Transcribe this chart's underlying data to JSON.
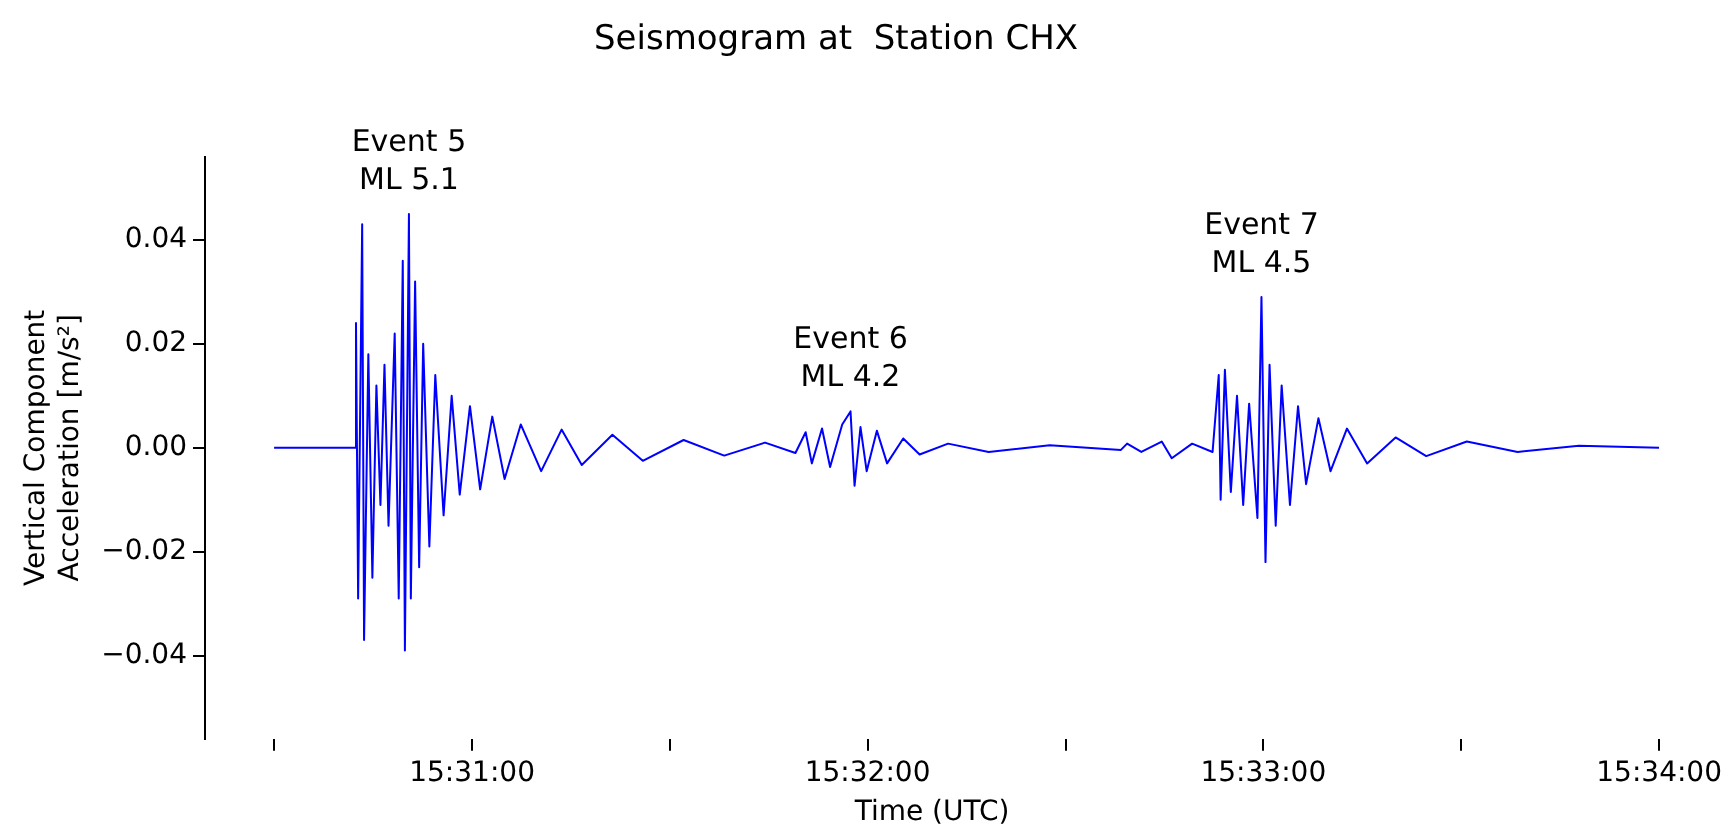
{
  "chart_data": {
    "type": "line",
    "title": "Seismogram at  Station CHX",
    "xlabel": "Time (UTC)",
    "ylabel": "Vertical Component\nAcceleration [m/s²]",
    "x": [
      15.50833,
      15.5117,
      15.51178,
      15.51187,
      15.51204,
      15.51212,
      15.5123,
      15.51247,
      15.51264,
      15.51281,
      15.51298,
      15.51315,
      15.51341,
      15.51358,
      15.51375,
      15.51384,
      15.51401,
      15.51409,
      15.51427,
      15.51444,
      15.51461,
      15.51487,
      15.51512,
      15.51547,
      15.51581,
      15.51615,
      15.51658,
      15.51701,
      15.51752,
      15.51804,
      15.51872,
      15.51958,
      15.52044,
      15.52129,
      15.52258,
      15.52386,
      15.52558,
      15.52729,
      15.52901,
      15.53029,
      15.53072,
      15.53098,
      15.53141,
      15.53175,
      15.53226,
      15.53261,
      15.53278,
      15.53303,
      15.53329,
      15.53372,
      15.53415,
      15.53483,
      15.53552,
      15.53672,
      15.53843,
      15.541,
      15.544,
      15.54426,
      15.54486,
      15.54572,
      15.54614,
      15.547,
      15.54786,
      15.54812,
      15.5482,
      15.54838,
      15.54863,
      15.54889,
      15.54915,
      15.5494,
      15.54975,
      15.54992,
      15.55009,
      15.55026,
      15.55052,
      15.55077,
      15.55112,
      15.55146,
      15.5518,
      15.55232,
      15.55283,
      15.55352,
      15.55437,
      15.55557,
      15.55686,
      15.55857,
      15.56071,
      15.56329,
      15.56667
    ],
    "series": [
      {
        "color": "#0000ff",
        "values": [
          0,
          0,
          0.024,
          -0.029,
          0.043,
          -0.037,
          0.018,
          -0.025,
          0.012,
          -0.011,
          0.016,
          -0.015,
          0.022,
          -0.029,
          0.036,
          -0.039,
          0.045,
          -0.029,
          0.032,
          -0.023,
          0.02,
          -0.019,
          0.014,
          -0.013,
          0.01,
          -0.009,
          0.008,
          -0.008,
          0.006,
          -0.006,
          0.0045,
          -0.0045,
          0.0035,
          -0.0033,
          0.0025,
          -0.0025,
          0.0015,
          -0.0015,
          0.001,
          -0.001,
          0.003,
          -0.003,
          0.0037,
          -0.0037,
          0.0045,
          0.007,
          -0.0073,
          0.004,
          -0.0045,
          0.0033,
          -0.003,
          0.0018,
          -0.0013,
          0.0008,
          -0.0008,
          0.0005,
          -0.0004,
          0.0008,
          -0.0008,
          0.0012,
          -0.002,
          0.0008,
          -0.0008,
          0.014,
          -0.01,
          0.015,
          -0.0085,
          0.01,
          -0.011,
          0.0085,
          -0.0135,
          0.029,
          -0.022,
          0.016,
          -0.015,
          0.012,
          -0.011,
          0.008,
          -0.007,
          0.0057,
          -0.0045,
          0.0037,
          -0.003,
          0.002,
          -0.0016,
          0.0012,
          -0.0008,
          0.0004,
          0
        ]
      }
    ],
    "xlim": [
      15.50542,
      15.56667
    ],
    "xticks": [
      {
        "value": 15.50833,
        "label": null
      },
      {
        "value": 15.51667,
        "label": "15:31:00"
      },
      {
        "value": 15.525,
        "label": null
      },
      {
        "value": 15.53333,
        "label": "15:32:00"
      },
      {
        "value": 15.54167,
        "label": null
      },
      {
        "value": 15.55,
        "label": "15:33:00"
      },
      {
        "value": 15.55833,
        "label": null
      },
      {
        "value": 15.56667,
        "label": "15:34:00"
      }
    ],
    "ylim": [
      -0.056,
      0.056
    ],
    "yticks": [
      {
        "value": -0.04,
        "label": "−0.04"
      },
      {
        "value": -0.02,
        "label": "−0.02"
      },
      {
        "value": 0,
        "label": "0.00"
      },
      {
        "value": 0.02,
        "label": "0.02"
      },
      {
        "value": 0.04,
        "label": "0.04"
      }
    ],
    "annotations": [
      {
        "text": "Event 5\nML 5.1",
        "x": 15.51401,
        "y": 0.045
      },
      {
        "text": "Event 6\nML 4.2",
        "x": 15.53261,
        "y": 0.007
      },
      {
        "text": "Event 7\nML 4.5",
        "x": 15.54992,
        "y": 0.029
      }
    ]
  }
}
